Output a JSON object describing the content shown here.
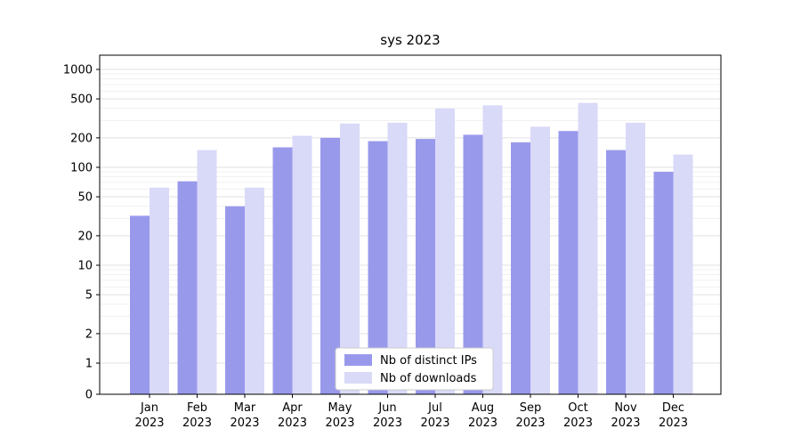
{
  "chart_data": {
    "type": "bar",
    "title": "sys 2023",
    "scale": "symlog",
    "grid": true,
    "legend_position": "lower center",
    "categories": [
      "Jan",
      "Feb",
      "Mar",
      "Apr",
      "May",
      "Jun",
      "Jul",
      "Aug",
      "Sep",
      "Oct",
      "Nov",
      "Dec"
    ],
    "year": "2023",
    "yticks": [
      0,
      1,
      2,
      5,
      10,
      20,
      50,
      100,
      200,
      500,
      1000
    ],
    "minor_gridlines": [
      3,
      4,
      6,
      7,
      8,
      9,
      30,
      40,
      60,
      70,
      80,
      90,
      300,
      400,
      600,
      700,
      800,
      900
    ],
    "ylim": [
      0,
      1000
    ],
    "series": [
      {
        "name": "Nb of distinct IPs",
        "color": "#9999ec",
        "values": [
          32,
          72,
          40,
          160,
          200,
          185,
          195,
          215,
          180,
          235,
          150,
          90
        ]
      },
      {
        "name": "Nb of downloads",
        "color": "#d9d9f8",
        "values": [
          62,
          150,
          62,
          210,
          280,
          285,
          400,
          430,
          260,
          455,
          285,
          135
        ]
      }
    ],
    "colors": {
      "grid_major": "#e0e0e0",
      "grid_minor": "#f1f1f1",
      "axis": "#000000",
      "text": "#000000",
      "background": "#ffffff",
      "legend_border": "#cccccc",
      "legend_background": "#ffffff"
    }
  }
}
